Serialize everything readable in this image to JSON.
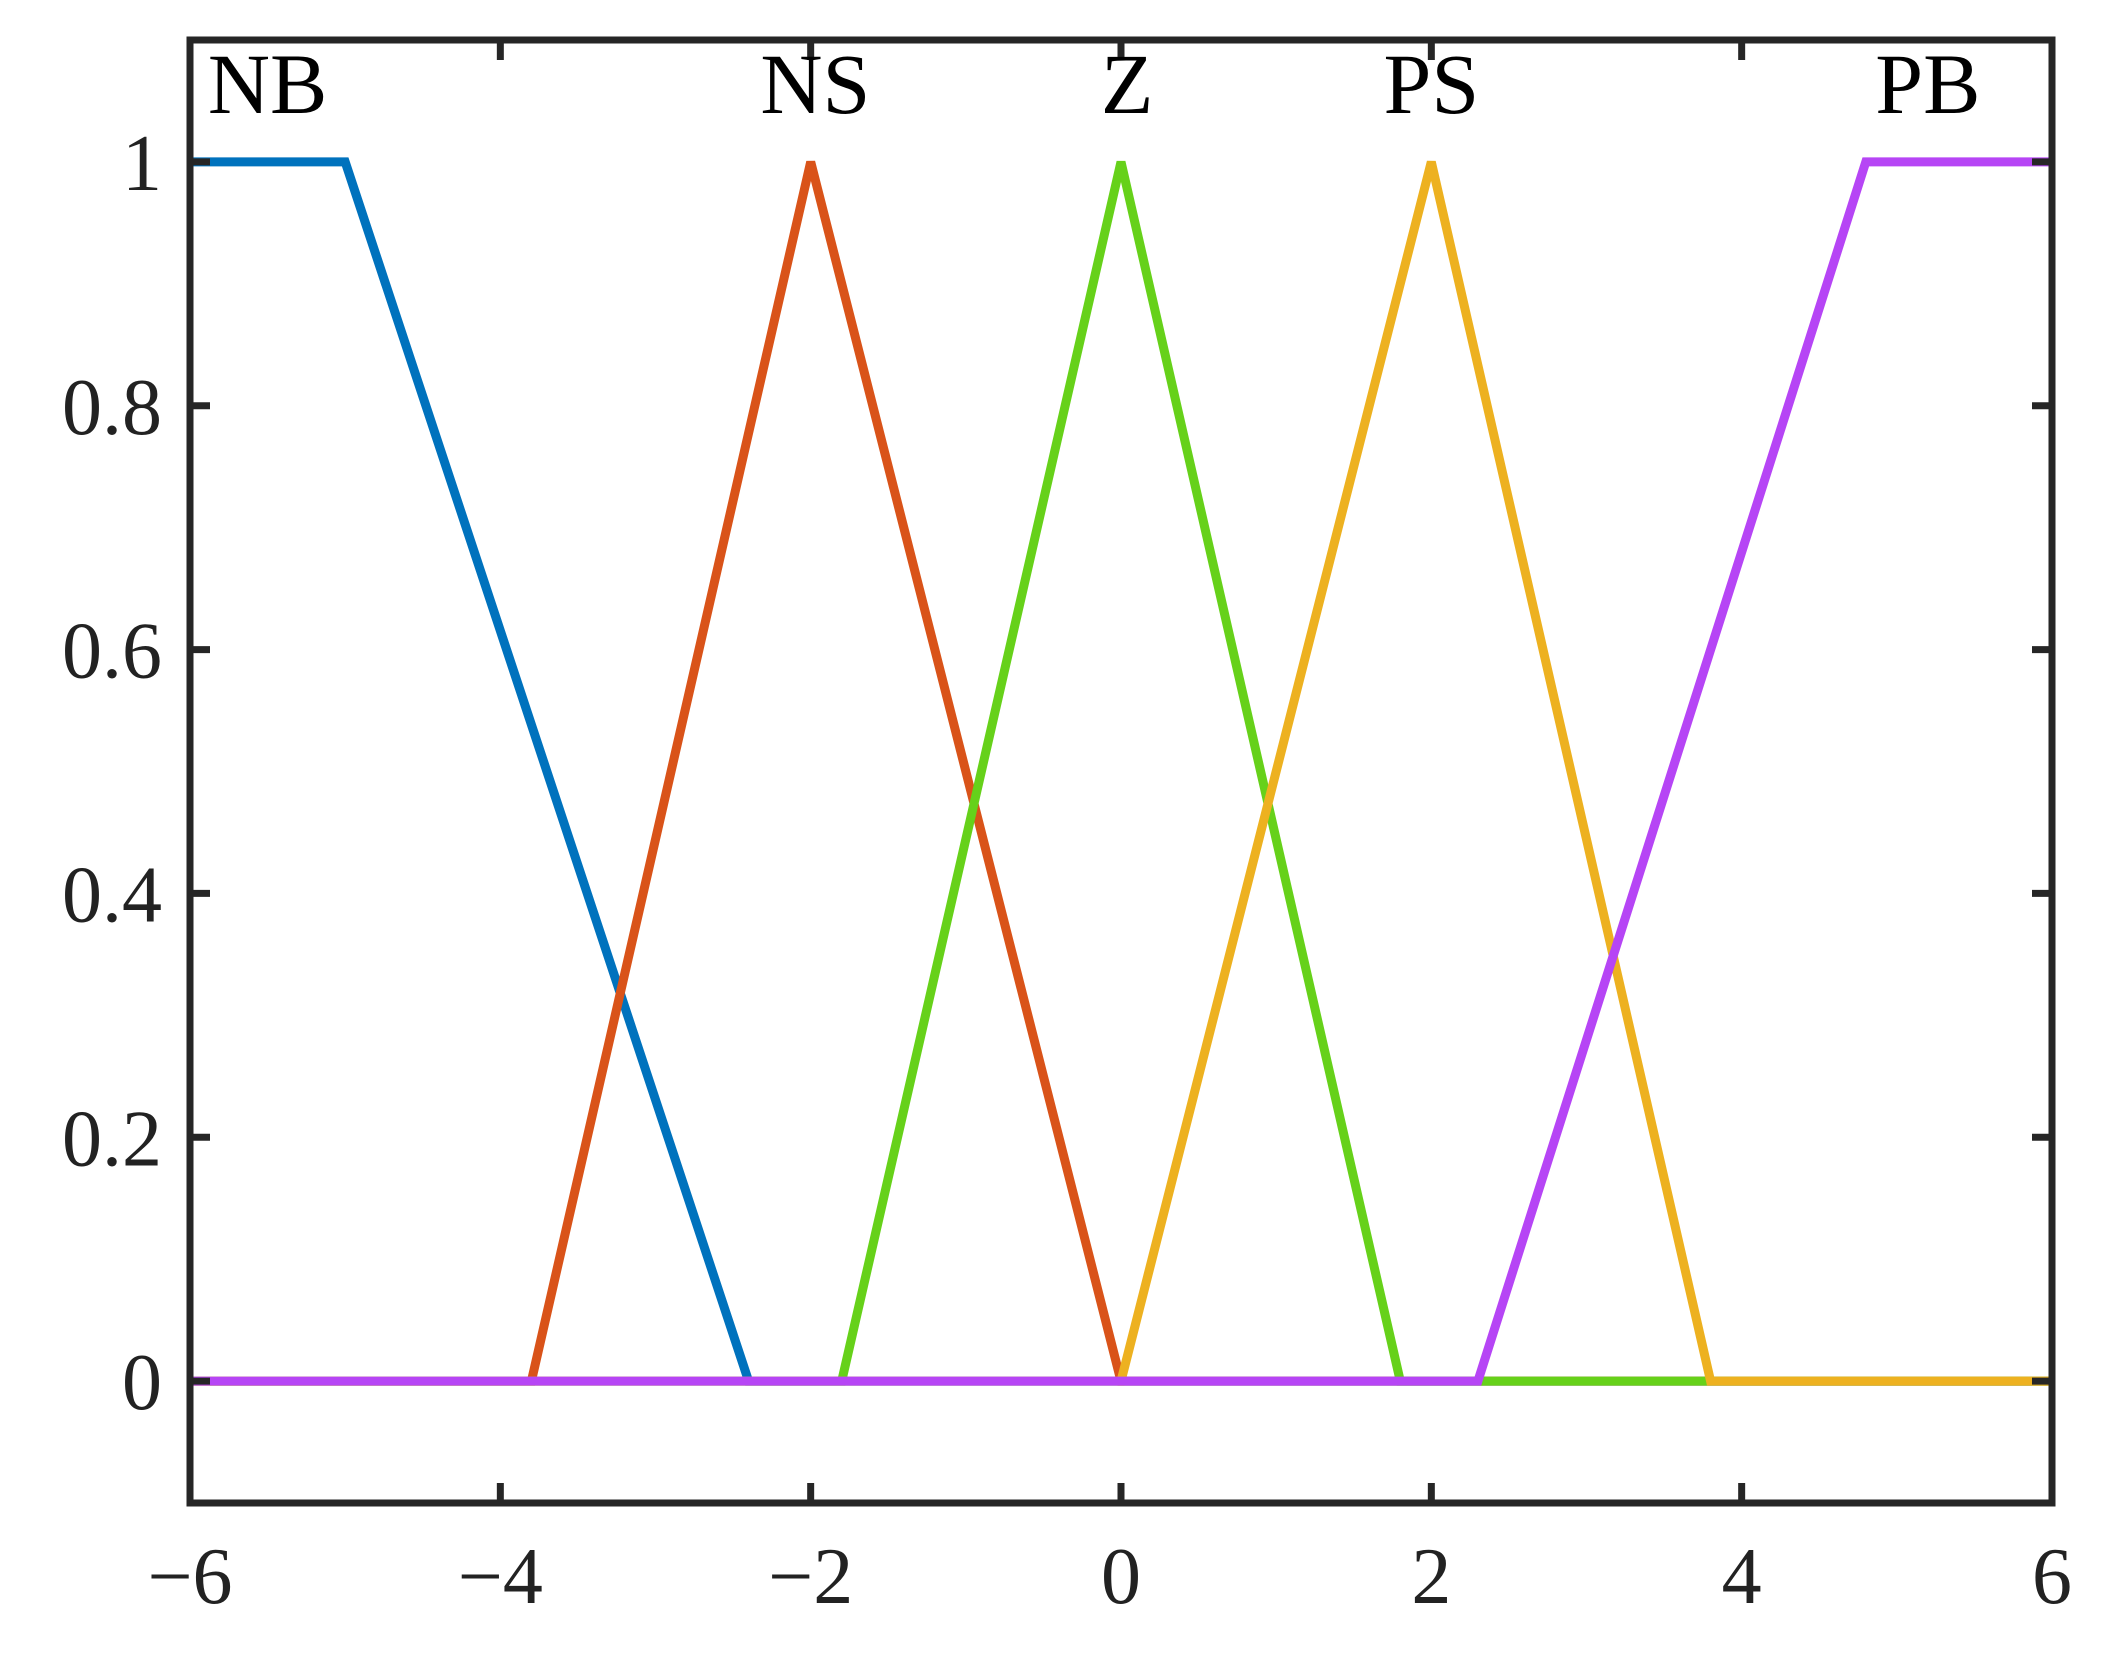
{
  "chart_data": {
    "type": "line",
    "title": "",
    "xlabel": "",
    "ylabel": "",
    "xlim": [
      -6,
      6
    ],
    "ylim": [
      -0.1,
      1.1
    ],
    "grid": false,
    "x_ticks": [
      -6,
      -4,
      -2,
      0,
      2,
      4,
      6
    ],
    "x_tick_labels": [
      "−6",
      "−4",
      "−2",
      "0",
      "2",
      "4",
      "6"
    ],
    "y_ticks": [
      0,
      0.2,
      0.4,
      0.6,
      0.8,
      1
    ],
    "y_tick_labels": [
      "0",
      "0.2",
      "0.4",
      "0.6",
      "0.8",
      "1"
    ],
    "series": [
      {
        "name": "NB",
        "color": "#0072BD",
        "x": [
          -6,
          -5,
          -2.4,
          6
        ],
        "y": [
          1,
          1,
          0,
          0
        ]
      },
      {
        "name": "NS",
        "color": "#D95319",
        "x": [
          -6,
          -3.8,
          -2,
          0,
          6
        ],
        "y": [
          0,
          0,
          1,
          0,
          0
        ]
      },
      {
        "name": "Z",
        "color": "#66D11A",
        "x": [
          -6,
          -1.8,
          0,
          1.8,
          6
        ],
        "y": [
          0,
          0,
          1,
          0,
          0
        ]
      },
      {
        "name": "PS",
        "color": "#EDB120",
        "x": [
          -6,
          0,
          2,
          3.8,
          6
        ],
        "y": [
          0,
          0,
          1,
          0,
          0
        ]
      },
      {
        "name": "PB",
        "color": "#B645F5",
        "x": [
          -6,
          2.3,
          4.8,
          6
        ],
        "y": [
          0,
          0,
          1,
          1
        ]
      }
    ],
    "annotations": [
      {
        "text": "NB",
        "x": -5.5,
        "y": 1.04
      },
      {
        "text": "NS",
        "x": -1.97,
        "y": 1.04
      },
      {
        "text": "Z",
        "x": 0.04,
        "y": 1.04
      },
      {
        "text": "PS",
        "x": 2,
        "y": 1.04
      },
      {
        "text": "PB",
        "x": 5.2,
        "y": 1.04
      }
    ]
  }
}
